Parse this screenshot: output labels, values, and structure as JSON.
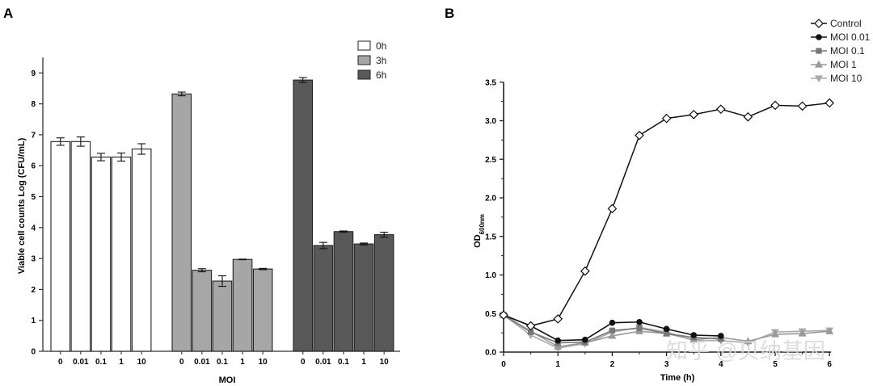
{
  "panels": {
    "a_letter": "A",
    "b_letter": "B"
  },
  "watermark": "知乎 @贝纳基因",
  "colors": {
    "bar_0h": "#ffffff",
    "bar_3h": "#a6a6a6",
    "bar_6h": "#595959",
    "control": "#111111",
    "moi_0_01": "#111111",
    "moi_0_1": "#777777",
    "moi_1": "#999999",
    "moi_10": "#aaaaaa"
  },
  "chart_data": [
    {
      "type": "bar",
      "title": "",
      "xlabel": "MOI",
      "ylabel": "Viable cell counts Log (CFU/mL)",
      "ylim": [
        0,
        9.5
      ],
      "yticks": [
        "0",
        "1",
        "2",
        "3",
        "4",
        "5",
        "6",
        "7",
        "8",
        "9"
      ],
      "legend_position": "top-right",
      "groups": [
        {
          "name": "0h",
          "categories": [
            "0",
            "0.01",
            "0.1",
            "1",
            "10"
          ],
          "values": [
            6.78,
            6.78,
            6.28,
            6.28,
            6.54
          ],
          "errors": [
            0.12,
            0.15,
            0.12,
            0.13,
            0.17
          ]
        },
        {
          "name": "3h",
          "categories": [
            "0",
            "0.01",
            "0.1",
            "1",
            "10"
          ],
          "values": [
            8.32,
            2.62,
            2.27,
            2.97,
            2.66
          ],
          "errors": [
            0.06,
            0.05,
            0.17,
            0.01,
            0.02
          ]
        },
        {
          "name": "6h",
          "categories": [
            "0",
            "0.01",
            "0.1",
            "1",
            "10"
          ],
          "values": [
            8.77,
            3.42,
            3.87,
            3.47,
            3.77
          ],
          "errors": [
            0.08,
            0.1,
            0.02,
            0.03,
            0.08
          ]
        }
      ]
    },
    {
      "type": "line",
      "title": "",
      "xlabel": "Time (h)",
      "ylabel_main": "OD",
      "ylabel_sub": "600nm",
      "xlim": [
        0,
        6
      ],
      "ylim": [
        0,
        3.5
      ],
      "xticks": [
        "0",
        "1",
        "2",
        "3",
        "4",
        "5",
        "6"
      ],
      "yticks": [
        "0.0",
        "0.5",
        "1.0",
        "1.5",
        "2.0",
        "2.5",
        "3.0",
        "3.5"
      ],
      "legend_position": "top-right",
      "x": [
        0,
        0.5,
        1,
        1.5,
        2,
        2.5,
        3,
        3.5,
        4,
        4.5,
        5,
        5.5,
        6
      ],
      "series": [
        {
          "name": "Control",
          "marker": "diamond",
          "values": [
            0.48,
            0.34,
            0.43,
            1.05,
            1.86,
            2.81,
            3.03,
            3.08,
            3.15,
            3.05,
            3.2,
            3.19,
            3.23
          ]
        },
        {
          "name": "MOI 0.01",
          "marker": "circle",
          "values": [
            0.48,
            0.34,
            0.15,
            0.16,
            0.38,
            0.39,
            0.3,
            0.22,
            0.21,
            null,
            null,
            null,
            null
          ]
        },
        {
          "name": "MOI 0.1",
          "marker": "square",
          "values": [
            0.48,
            0.26,
            0.12,
            0.13,
            0.28,
            0.31,
            0.24,
            0.19,
            0.17,
            null,
            null,
            null,
            null
          ]
        },
        {
          "name": "MOI 1",
          "marker": "triangle-up",
          "values": [
            0.48,
            0.27,
            0.07,
            0.12,
            0.21,
            0.27,
            0.24,
            0.16,
            0.19,
            0.14,
            0.23,
            0.24,
            0.27
          ]
        },
        {
          "name": "MOI 10",
          "marker": "triangle-down",
          "values": [
            0.48,
            0.22,
            0.05,
            0.11,
            0.26,
            0.32,
            0.26,
            0.15,
            0.15,
            0.12,
            0.26,
            0.27,
            0.28
          ]
        }
      ]
    }
  ]
}
